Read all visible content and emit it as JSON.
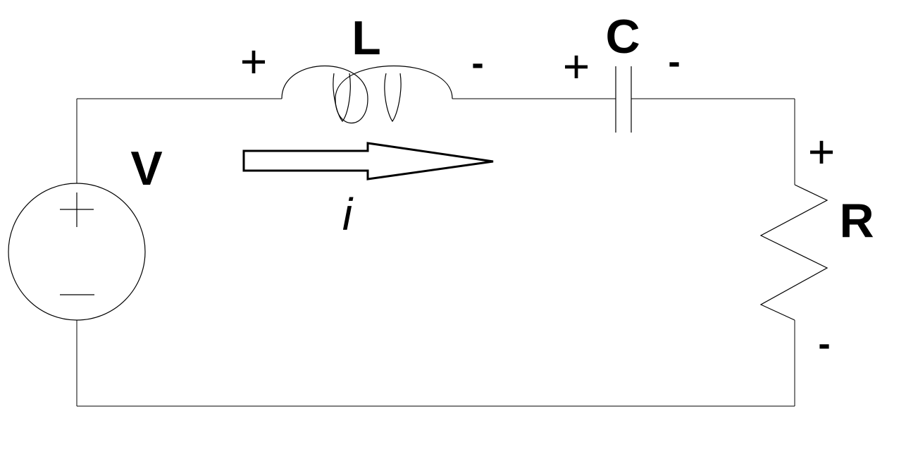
{
  "labels": {
    "source": "V",
    "inductor": "L",
    "capacitor": "C",
    "resistor": "R",
    "current": "i"
  },
  "polarity": {
    "inductor_plus": "+",
    "inductor_minus": "-",
    "capacitor_plus": "+",
    "capacitor_minus": "-",
    "resistor_plus": "+",
    "resistor_minus": "-"
  },
  "colors": {
    "line": "#000000",
    "background": "#ffffff"
  }
}
